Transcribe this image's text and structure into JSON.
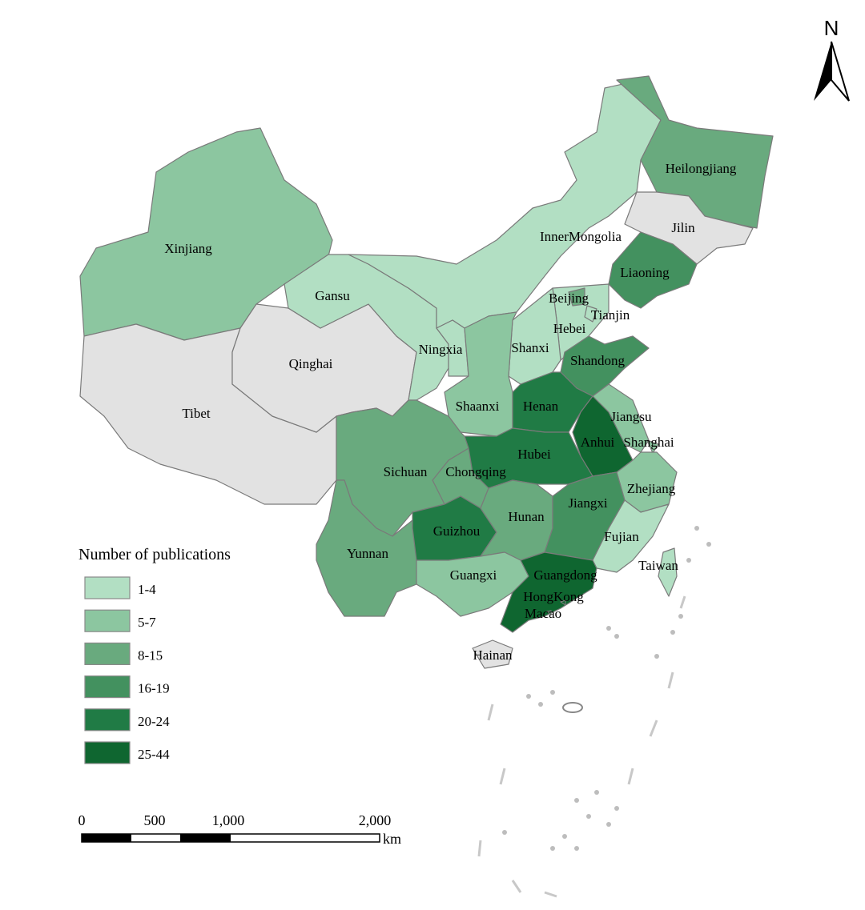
{
  "legend": {
    "title": "Number of publications",
    "classes": [
      {
        "label": "1-4",
        "color": "#b2dfc3"
      },
      {
        "label": "5-7",
        "color": "#8cc6a0"
      },
      {
        "label": "8-15",
        "color": "#69aa7e"
      },
      {
        "label": "16-19",
        "color": "#43915f"
      },
      {
        "label": "20-24",
        "color": "#207b45"
      },
      {
        "label": "25-44",
        "color": "#0f6630"
      }
    ],
    "no_data_color": "#e2e2e2"
  },
  "north_arrow": {
    "label": "N"
  },
  "scale_bar": {
    "ticks": [
      "0",
      "500",
      "1,000",
      "2,000"
    ],
    "unit": "km"
  },
  "regions": [
    {
      "id": "xinjiang",
      "label": "Xinjiang",
      "class": 1
    },
    {
      "id": "tibet",
      "label": "Tibet",
      "class": null
    },
    {
      "id": "qinghai",
      "label": "Qinghai",
      "class": null
    },
    {
      "id": "gansu",
      "label": "Gansu",
      "class": 0
    },
    {
      "id": "innermongolia",
      "label": "InnerMongolia",
      "class": 0
    },
    {
      "id": "ningxia",
      "label": "Ningxia",
      "class": 0
    },
    {
      "id": "heilongjiang",
      "label": "Heilongjiang",
      "class": 2
    },
    {
      "id": "jilin",
      "label": "Jilin",
      "class": null
    },
    {
      "id": "liaoning",
      "label": "Liaoning",
      "class": 3
    },
    {
      "id": "hebei",
      "label": "Hebei",
      "class": 0
    },
    {
      "id": "beijing",
      "label": "Beijing",
      "class": 2
    },
    {
      "id": "tianjin",
      "label": "Tianjin",
      "class": 0
    },
    {
      "id": "shanxi",
      "label": "Shanxi",
      "class": 0
    },
    {
      "id": "shaanxi",
      "label": "Shaanxi",
      "class": 1
    },
    {
      "id": "shandong",
      "label": "Shandong",
      "class": 3
    },
    {
      "id": "henan",
      "label": "Henan",
      "class": 4
    },
    {
      "id": "jiangsu",
      "label": "Jiangsu",
      "class": 1
    },
    {
      "id": "anhui",
      "label": "Anhui",
      "class": 5
    },
    {
      "id": "shanghai",
      "label": "Shanghai",
      "class": 1
    },
    {
      "id": "zhejiang",
      "label": "Zhejiang",
      "class": 1
    },
    {
      "id": "hubei",
      "label": "Hubei",
      "class": 4
    },
    {
      "id": "chongqing",
      "label": "Chongqing",
      "class": 2
    },
    {
      "id": "sichuan",
      "label": "Sichuan",
      "class": 2
    },
    {
      "id": "yunnan",
      "label": "Yunnan",
      "class": 2
    },
    {
      "id": "guizhou",
      "label": "Guizhou",
      "class": 4
    },
    {
      "id": "hunan",
      "label": "Hunan",
      "class": 2
    },
    {
      "id": "jiangxi",
      "label": "Jiangxi",
      "class": 3
    },
    {
      "id": "fujian",
      "label": "Fujian",
      "class": 0
    },
    {
      "id": "guangxi",
      "label": "Guangxi",
      "class": 1
    },
    {
      "id": "guangdong",
      "label": "Guangdong",
      "class": 5
    },
    {
      "id": "hongkong",
      "label": "HongKong",
      "class": 5
    },
    {
      "id": "macao",
      "label": "Macao",
      "class": 5
    },
    {
      "id": "hainan",
      "label": "Hainan",
      "class": null
    },
    {
      "id": "taiwan",
      "label": "Taiwan",
      "class": 0
    }
  ]
}
